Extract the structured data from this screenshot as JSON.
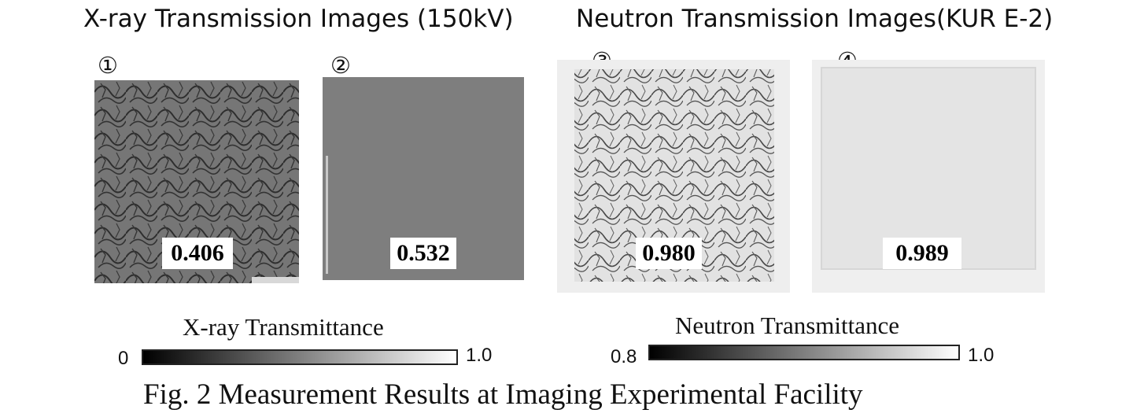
{
  "xray_group": {
    "title": "X-ray Transmission Images (150kV)"
  },
  "neutron_group": {
    "title": "Neutron Transmission Images(KUR E-2)"
  },
  "panels": [
    {
      "marker": "①",
      "value": "0.406"
    },
    {
      "marker": "②",
      "value": "0.532"
    },
    {
      "marker": "③",
      "value": "0.980"
    },
    {
      "marker": "④",
      "value": "0.989"
    }
  ],
  "xray_colorbar": {
    "title": "X-ray Transmittance",
    "min_label": "0",
    "max_label": "1.0"
  },
  "neutron_colorbar": {
    "title": "Neutron Transmittance",
    "min_label": "0.8",
    "max_label": "1.0"
  },
  "caption": "Fig. 2   Measurement Results at Imaging Experimental Facility"
}
